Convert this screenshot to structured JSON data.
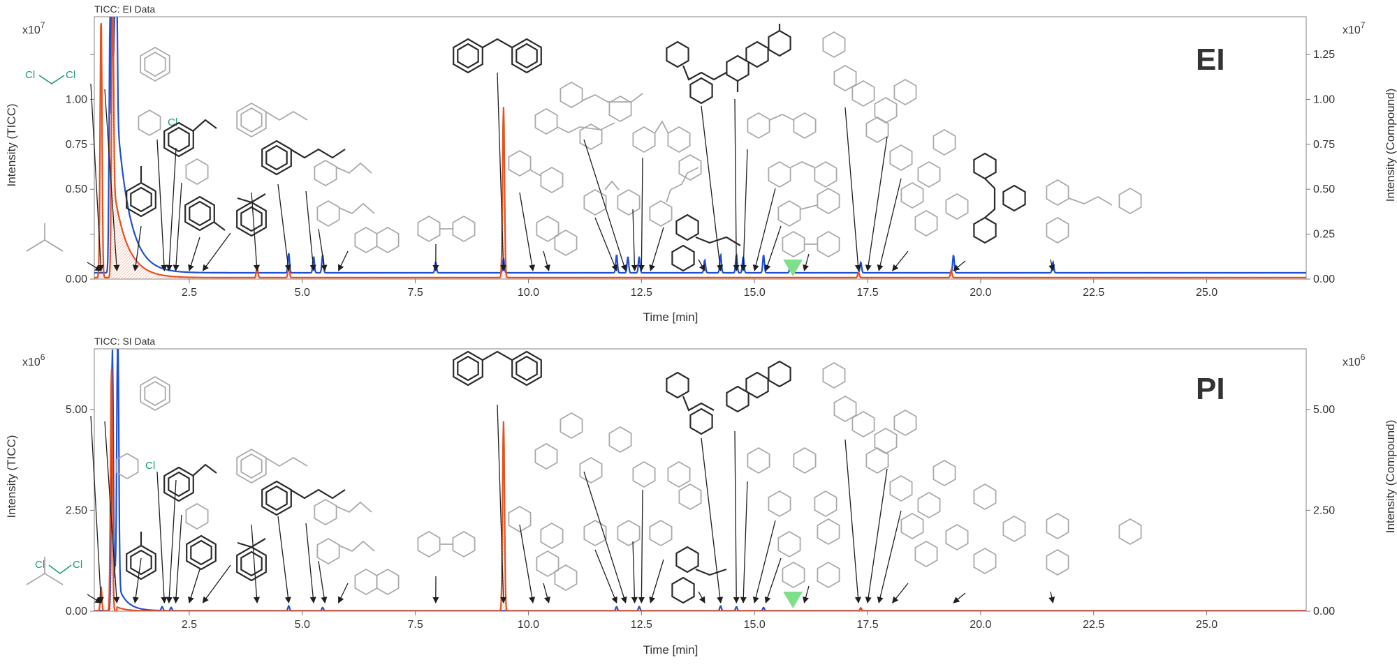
{
  "chart_data": [
    {
      "type": "line",
      "title": "TICC: EI Data",
      "label": "EI",
      "xlabel": "Time [min]",
      "ylabel_left": "Intensity (TICC)",
      "ylabel_right": "Intensity (Compound)",
      "multiplier_left": "x10",
      "multiplier_right": "x10",
      "multiplier_exp": "7",
      "xlim": [
        0.4,
        27.2
      ],
      "ylim": [
        0,
        1.46
      ],
      "xticks": [
        2.5,
        5.0,
        7.5,
        10.0,
        12.5,
        15.0,
        17.5,
        20.0,
        22.5,
        25.0
      ],
      "xtick_labels": [
        "2.5",
        "5.0",
        "7.5",
        "10.0",
        "12.5",
        "15.0",
        "17.5",
        "20.0",
        "22.5",
        "25.0"
      ],
      "yticks": [
        0,
        0.25,
        0.5,
        0.75,
        1.0,
        1.25
      ],
      "ytick_labels_left": [
        "0.00",
        "",
        "0.50",
        "0.75",
        "1.00",
        ""
      ],
      "ytick_labels_right": [
        "0.00",
        "0.25",
        "0.50",
        "0.75",
        "1.00",
        "1.25"
      ],
      "series": [
        {
          "color": "#1f4fd6",
          "baseline": 0.035,
          "decay_amp": 1.35,
          "decay_tau": 0.28,
          "decay_start": 0.78,
          "peaks": [
            [
              0.75,
              1.45
            ],
            [
              0.88,
              1.45
            ],
            [
              4.7,
              0.11
            ],
            [
              5.25,
              0.09
            ],
            [
              5.45,
              0.1
            ],
            [
              7.95,
              0.06
            ],
            [
              9.45,
              0.08
            ],
            [
              11.95,
              0.1
            ],
            [
              12.2,
              0.09
            ],
            [
              12.45,
              0.09
            ],
            [
              13.9,
              0.07
            ],
            [
              14.25,
              0.1
            ],
            [
              14.6,
              0.1
            ],
            [
              14.75,
              0.09
            ],
            [
              15.2,
              0.1
            ],
            [
              15.8,
              0.07
            ],
            [
              17.35,
              0.06
            ],
            [
              19.4,
              0.1
            ],
            [
              21.6,
              0.06
            ]
          ]
        },
        {
          "color": "#e8501e",
          "baseline": 0.008,
          "decay_amp": 0.55,
          "decay_tau": 0.3,
          "decay_start": 0.8,
          "peaks": [
            [
              0.55,
              1.45
            ],
            [
              0.8,
              1.45
            ],
            [
              4.0,
              0.06
            ],
            [
              4.7,
              0.07
            ],
            [
              9.45,
              0.95
            ],
            [
              17.3,
              0.03
            ],
            [
              19.35,
              0.04
            ]
          ]
        }
      ],
      "marker": {
        "x": 15.85,
        "color": "#7ee08a"
      }
    },
    {
      "type": "line",
      "title": "TICC: SI Data",
      "label": "PI",
      "xlabel": "Time [min]",
      "ylabel_left": "Intensity (TICC)",
      "ylabel_right": "Intensity (Compound)",
      "multiplier_left": "x10",
      "multiplier_right": "x10",
      "multiplier_exp": "6",
      "xlim": [
        0.4,
        27.2
      ],
      "ylim": [
        0,
        6.5
      ],
      "xticks": [
        2.5,
        5.0,
        7.5,
        10.0,
        12.5,
        15.0,
        17.5,
        20.0,
        22.5,
        25.0
      ],
      "xtick_labels": [
        "2.5",
        "5.0",
        "7.5",
        "10.0",
        "12.5",
        "15.0",
        "17.5",
        "20.0",
        "22.5",
        "25.0"
      ],
      "yticks": [
        0,
        2.5,
        5.0
      ],
      "ytick_labels_left": [
        "0.00",
        "2.50",
        "5.00"
      ],
      "ytick_labels_right": [
        "0.00",
        "2.50",
        "5.00"
      ],
      "series": [
        {
          "color": "#1f4fd6",
          "baseline": 0.01,
          "decay_amp": 0.9,
          "decay_tau": 0.2,
          "decay_start": 0.85,
          "peaks": [
            [
              0.8,
              6.5
            ],
            [
              0.92,
              6.5
            ],
            [
              1.9,
              0.1
            ],
            [
              2.1,
              0.08
            ],
            [
              4.7,
              0.12
            ],
            [
              5.45,
              0.08
            ],
            [
              11.95,
              0.1
            ],
            [
              12.45,
              0.1
            ],
            [
              14.25,
              0.12
            ],
            [
              14.6,
              0.1
            ],
            [
              15.2,
              0.08
            ],
            [
              17.35,
              0.05
            ]
          ]
        },
        {
          "color": "#e8501e",
          "baseline": 0.005,
          "decay_amp": 0.1,
          "decay_tau": 0.2,
          "decay_start": 0.9,
          "peaks": [
            [
              0.55,
              0.6
            ],
            [
              0.78,
              6.0
            ],
            [
              9.45,
              4.7
            ],
            [
              17.35,
              0.08
            ]
          ]
        }
      ],
      "marker": {
        "x": 15.85,
        "color": "#7ee08a"
      }
    }
  ],
  "atom_labels": {
    "cl": "Cl"
  }
}
